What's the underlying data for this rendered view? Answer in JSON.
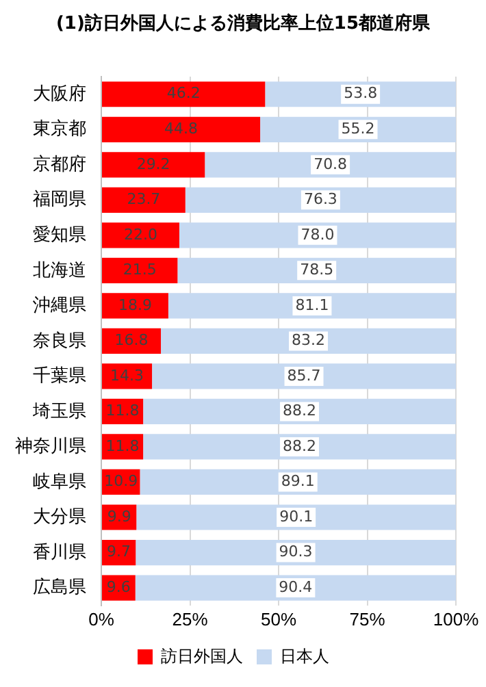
{
  "chart_data": {
    "type": "bar",
    "title": "(1)訪日外国人による消費比率上位15都道府県",
    "orientation": "horizontal",
    "stacked": true,
    "categories": [
      "大阪府",
      "東京都",
      "京都府",
      "福岡県",
      "愛知県",
      "北海道",
      "沖縄県",
      "奈良県",
      "千葉県",
      "埼玉県",
      "神奈川県",
      "岐阜県",
      "大分県",
      "香川県",
      "広島県"
    ],
    "series": [
      {
        "name": "訪日外国人",
        "color": "#ff0000",
        "values": [
          46.2,
          44.8,
          29.2,
          23.7,
          22.0,
          21.5,
          18.9,
          16.8,
          14.3,
          11.8,
          11.8,
          10.9,
          9.9,
          9.7,
          9.6
        ],
        "value_labels": [
          "46.2",
          "44.8",
          "29.2",
          "23.7",
          "22.0",
          "21.5",
          "18.9",
          "16.8",
          "14.3",
          "11.8",
          "11.8",
          "10.9",
          "9.9",
          "9.7",
          "9.6"
        ]
      },
      {
        "name": "日本人",
        "color": "#c6d9f1",
        "values": [
          53.8,
          55.2,
          70.8,
          76.3,
          78.0,
          78.5,
          81.1,
          83.2,
          85.7,
          88.2,
          88.2,
          89.1,
          90.1,
          90.3,
          90.4
        ],
        "value_labels": [
          "53.8",
          "55.2",
          "70.8",
          "76.3",
          "78.0",
          "78.5",
          "81.1",
          "83.2",
          "85.7",
          "88.2",
          "88.2",
          "89.1",
          "90.1",
          "90.3",
          "90.4"
        ]
      }
    ],
    "xlim": [
      0,
      100
    ],
    "xticks": [
      {
        "value": 0,
        "label": "0%"
      },
      {
        "value": 25,
        "label": "25%"
      },
      {
        "value": 50,
        "label": "50%"
      },
      {
        "value": 75,
        "label": "75%"
      },
      {
        "value": 100,
        "label": "100%"
      }
    ],
    "grid": "x",
    "legend": "bottom"
  }
}
